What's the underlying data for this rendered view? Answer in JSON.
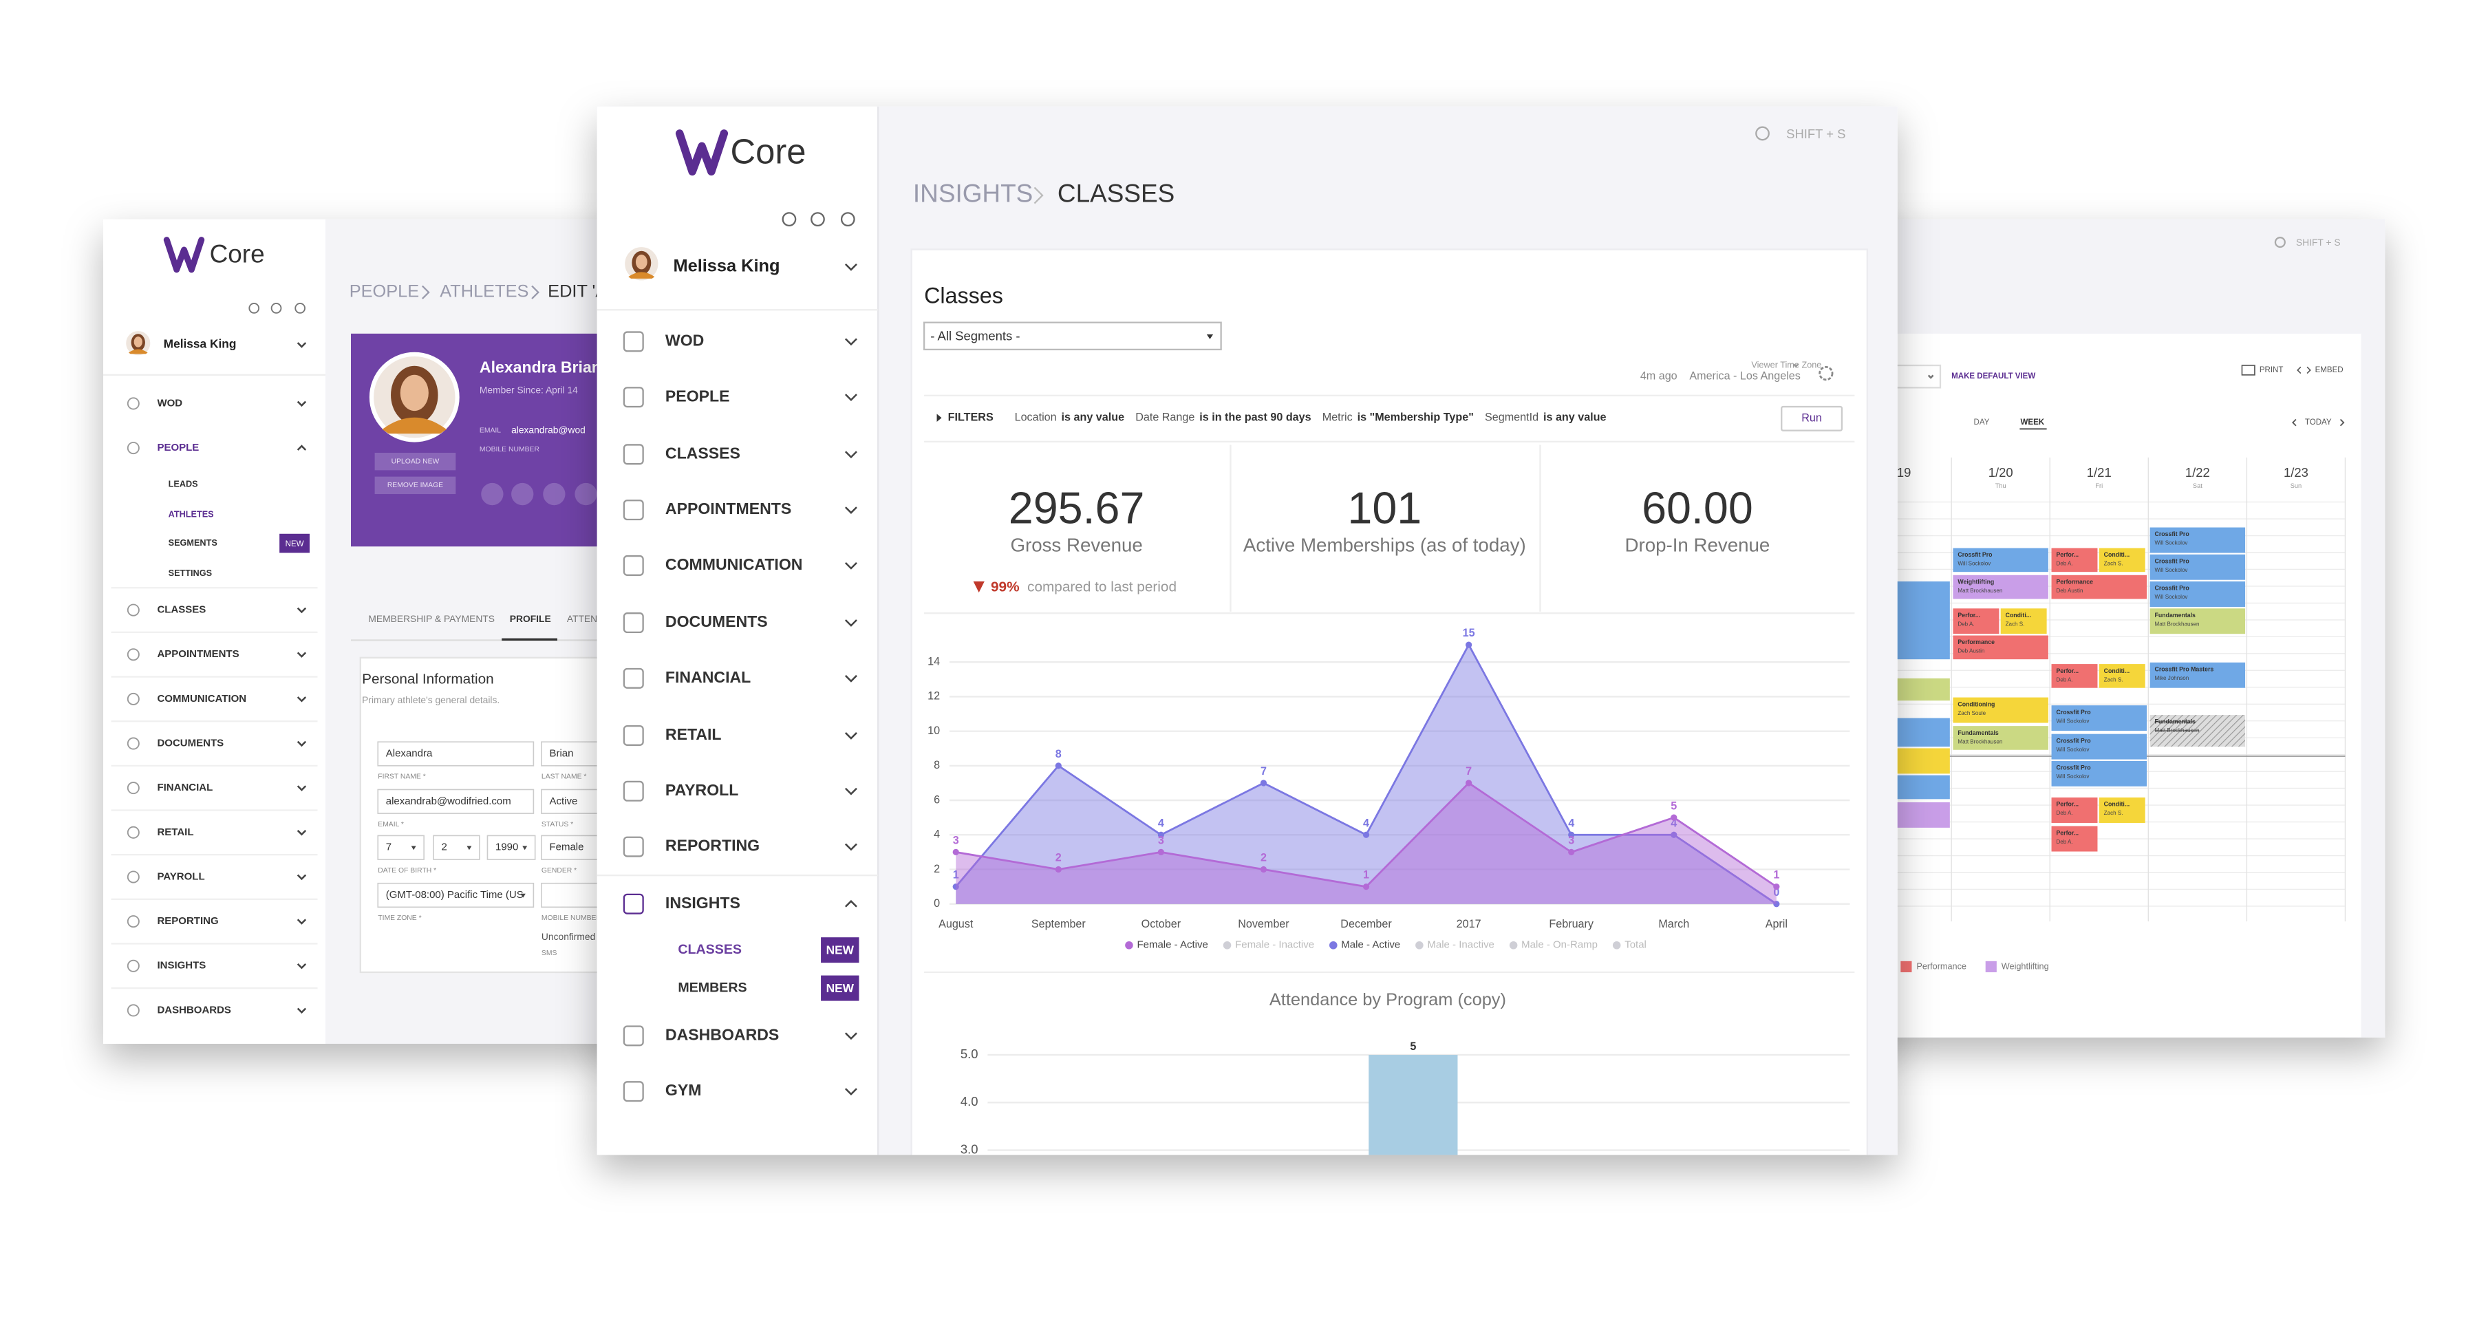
{
  "main": {
    "logo": "Core",
    "user": "Melissa King",
    "nav": [
      "WOD",
      "PEOPLE",
      "CLASSES",
      "APPOINTMENTS",
      "COMMUNICATION",
      "DOCUMENTS",
      "FINANCIAL",
      "RETAIL",
      "PAYROLL",
      "REPORTING",
      "INSIGHTS"
    ],
    "subnav": [
      {
        "label": "CLASSES",
        "badge": "NEW"
      },
      {
        "label": "MEMBERS",
        "badge": "NEW"
      }
    ],
    "nav_after": [
      "DASHBOARDS",
      "GYM"
    ],
    "search_hint": "SHIFT + S",
    "breadcrumb": [
      "INSIGHTS",
      "CLASSES"
    ],
    "card_title": "Classes",
    "segment_select": "- All Segments -",
    "timezone_label": "Viewer Time Zone",
    "updated": "4m ago",
    "timezone": "America - Los Angeles",
    "filters_label": "FILTERS",
    "filters": [
      {
        "field": "Location",
        "condition": "is any value"
      },
      {
        "field": "Date Range",
        "condition": "is in the past 90 days"
      },
      {
        "field": "Metric",
        "condition": "is \"Membership Type\""
      },
      {
        "field": "SegmentId",
        "condition": "is any value"
      }
    ],
    "run": "Run",
    "kpis": [
      {
        "value": "295.67",
        "label": "Gross Revenue",
        "change": "99%",
        "change_note": "compared to last period"
      },
      {
        "value": "101",
        "label": "Active Memberships (as of today)"
      },
      {
        "value": "60.00",
        "label": "Drop-In Revenue"
      }
    ]
  },
  "chart_data": [
    {
      "type": "area",
      "categories": [
        "August",
        "September",
        "October",
        "November",
        "December",
        "2017",
        "February",
        "March",
        "April"
      ],
      "series": [
        {
          "name": "Female - Active",
          "color": "#b36ad6",
          "values": [
            3,
            2,
            3,
            2,
            1,
            7,
            3,
            5,
            1
          ]
        },
        {
          "name": "Female - Inactive",
          "color": "#cfcfd6"
        },
        {
          "name": "Male - Active",
          "color": "#7b77e2",
          "values": [
            1,
            8,
            4,
            7,
            4,
            15,
            4,
            4,
            0
          ]
        },
        {
          "name": "Male - Inactive",
          "color": "#cfcfd6"
        },
        {
          "name": "Male - On-Ramp",
          "color": "#cfcfd6"
        },
        {
          "name": "Total",
          "color": "#cfcfd6"
        }
      ],
      "ylim": [
        0,
        16
      ],
      "yticks": [
        0,
        2,
        4,
        6,
        8,
        10,
        12,
        14
      ],
      "grid": true
    },
    {
      "type": "bar",
      "title": "Attendance by Program (copy)",
      "categories": [
        null
      ],
      "values": [
        5
      ],
      "color": "#a8cde3",
      "ylim": [
        0,
        5.5
      ],
      "yticks": [
        {
          "value": 3,
          "label": "3.0"
        },
        {
          "value": 4,
          "label": "4.0"
        },
        {
          "value": 5,
          "label": "5.0"
        }
      ],
      "grid": true
    }
  ],
  "calendar": {
    "search_hint": "SHIFT + S",
    "print": "PRINT",
    "embed": "EMBED",
    "default_view": "MAKE DEFAULT VIEW",
    "views": [
      "DAY",
      "WEEK"
    ],
    "today": "TODAY",
    "days": [
      {
        "date": "/19"
      },
      {
        "date": "1/20",
        "weekday": "Thu",
        "events": [
          {
            "title": "Crossfit Pro",
            "coach": "Will Sockolov",
            "color": "#6fa8e6"
          },
          {
            "title": "Weightlifting",
            "coach": "Matt Brockhausen",
            "color": "#c99ee8"
          },
          {
            "title": "Perfor...",
            "coach": "Deb A.",
            "color": "#f07070"
          },
          {
            "title": "Conditi...",
            "coach": "Zach S.",
            "color": "#f5d63a"
          },
          {
            "title": "Performance",
            "coach": "Deb Austin",
            "color": "#f07070"
          },
          {
            "title": "Conditioning",
            "coach": "Zach Soule",
            "color": "#f5d63a"
          },
          {
            "title": "Fundamentals",
            "coach": "Matt Brockhausen",
            "color": "#cbd983"
          }
        ]
      },
      {
        "date": "1/21",
        "weekday": "Fri",
        "events": [
          {
            "title": "Perfor...",
            "coach": "Deb A.",
            "color": "#f07070"
          },
          {
            "title": "Conditi...",
            "coach": "Zach S.",
            "color": "#f5d63a"
          },
          {
            "title": "Performance",
            "coach": "Deb Austin",
            "color": "#f07070"
          },
          {
            "title": "Perfor...",
            "coach": "Deb A.",
            "color": "#f07070"
          },
          {
            "title": "Conditi...",
            "coach": "Zach S.",
            "color": "#f5d63a"
          },
          {
            "title": "Crossfit Pro",
            "coach": "Will Sockolov",
            "color": "#6fa8e6"
          },
          {
            "title": "Crossfit Pro",
            "coach": "Will Sockolov",
            "color": "#6fa8e6"
          },
          {
            "title": "Crossfit Pro",
            "coach": "Will Sockolov",
            "color": "#6fa8e6"
          },
          {
            "title": "Perfor...",
            "coach": "Deb A.",
            "color": "#f07070"
          },
          {
            "title": "Conditi...",
            "coach": "Zach S.",
            "color": "#f5d63a"
          },
          {
            "title": "Perfor...",
            "coach": "Deb A.",
            "color": "#f07070"
          }
        ]
      },
      {
        "date": "1/22",
        "weekday": "Sat",
        "events": [
          {
            "title": "Crossfit Pro",
            "coach": "Will Sockolov",
            "color": "#6fa8e6"
          },
          {
            "title": "Crossfit Pro",
            "coach": "Will Sockolov",
            "color": "#6fa8e6"
          },
          {
            "title": "Crossfit Pro",
            "coach": "Will Sockolov",
            "color": "#6fa8e6"
          },
          {
            "title": "Fundamentals",
            "coach": "Matt Brockhausen",
            "color": "#cbd983"
          },
          {
            "title": "Crossfit Pro Masters",
            "coach": "Mike Johnson",
            "color": "#6fa8e6"
          },
          {
            "title": "Fundamentals",
            "coach": "Matt Brockhausen",
            "color": "#bbbbbb",
            "cancelled": true
          }
        ]
      },
      {
        "date": "1/23",
        "weekday": "Sun"
      }
    ],
    "legend": [
      {
        "name": "Performance",
        "color": "#f07070"
      },
      {
        "name": "Weightlifting",
        "color": "#c99ee8"
      }
    ]
  },
  "athlete_page": {
    "logo": "Core",
    "user": "Melissa King",
    "nav": [
      "WOD",
      "PEOPLE"
    ],
    "people_subnav": [
      "LEADS",
      "ATHLETES",
      "SEGMENTS",
      "SETTINGS"
    ],
    "segments_badge": "NEW",
    "nav_after": [
      "CLASSES",
      "APPOINTMENTS",
      "COMMUNICATION",
      "DOCUMENTS",
      "FINANCIAL",
      "RETAIL",
      "PAYROLL",
      "REPORTING",
      "INSIGHTS",
      "DASHBOARDS"
    ],
    "breadcrumb": [
      "PEOPLE",
      "ATHLETES",
      "EDIT 'A"
    ],
    "profile": {
      "name": "Alexandra Brian",
      "member_since": "Member Since: April 14",
      "email_label": "EMAIL",
      "email": "alexandrab@wod",
      "mobile_label": "MOBILE NUMBER",
      "upload": "UPLOAD NEW",
      "remove": "REMOVE IMAGE"
    },
    "tabs": [
      "MEMBERSHIP & PAYMENTS",
      "PROFILE",
      "ATTEN"
    ],
    "section_title": "Personal Information",
    "section_note": "Primary athlete's general details.",
    "fields": [
      {
        "value": "Alexandra",
        "label": "FIRST NAME *"
      },
      {
        "value": "Brian",
        "label": "LAST NAME *"
      },
      {
        "value": "alexandrab@wodifried.com",
        "label": "EMAIL *"
      },
      {
        "value": "Active",
        "label": "STATUS *"
      },
      {
        "value": "7",
        "label": "DATE OF BIRTH *"
      },
      {
        "value": "2"
      },
      {
        "value": "1990"
      },
      {
        "value": "Female",
        "label": "GENDER *"
      },
      {
        "value": "(GMT-08:00) Pacific Time (US",
        "label": "TIME ZONE *"
      },
      {
        "label": "MOBILE NUMBER"
      }
    ],
    "mobile_status": "Unconfirmed",
    "mobile_note": "SMS"
  }
}
